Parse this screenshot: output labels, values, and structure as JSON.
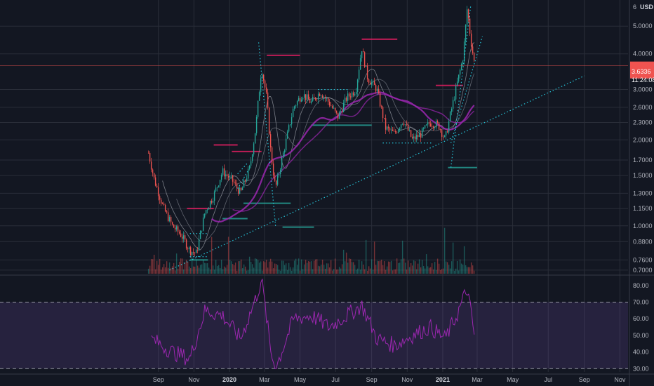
{
  "colors": {
    "background": "#131722",
    "grid": "#2a2e39",
    "up": "#26a69a",
    "down": "#ef5350",
    "rsi_line": "#9c27b0",
    "rsi_band": "#7e57c2",
    "trend_line": "#26c6da",
    "ma_thin": "#9598a1",
    "ma_purple": "#9c27b0",
    "resistance": "#e91e63",
    "support": "#26a69a",
    "price_tag": "#ef5350"
  },
  "price_axis": {
    "currency": "USD",
    "ticks": [
      "6",
      "5.0000",
      "4.0000",
      "3.0000",
      "2.6000",
      "2.3000",
      "2.0000",
      "1.7000",
      "1.5000",
      "1.3000",
      "1.1500",
      "1.0000",
      "0.8800",
      "0.7600",
      "0.7000"
    ],
    "last_price": "3.6336",
    "countdown": "11:24:08"
  },
  "rsi_axis": {
    "ticks": [
      "80.00",
      "70.00",
      "60.00",
      "50.00",
      "40.00",
      "30.00"
    ],
    "upper_band": 70,
    "lower_band": 30
  },
  "time_axis": {
    "labels": [
      "Sep",
      "Nov",
      "2020",
      "Mar",
      "May",
      "Jul",
      "Sep",
      "Nov",
      "2021",
      "Mar",
      "May",
      "Jul",
      "Sep",
      "Nov"
    ],
    "bold_labels": [
      "2020",
      "2021"
    ]
  },
  "chart_data": {
    "type": "line",
    "title": "",
    "x_start": "2019-08",
    "x_end": "2021-11",
    "ylim": [
      0.7,
      6.0
    ],
    "y_scale": "log",
    "series": [
      {
        "x": [
          "2019-08-15",
          "2019-08-25",
          "2019-09-10",
          "2019-09-25",
          "2019-10-10",
          "2019-10-25",
          "2019-11-05",
          "2019-11-20",
          "2019-12-05",
          "2019-12-20",
          "2020-01-05",
          "2020-01-20",
          "2020-02-05",
          "2020-02-15",
          "2020-02-25",
          "2020-03-05",
          "2020-03-12",
          "2020-03-20",
          "2020-04-05",
          "2020-04-20",
          "2020-05-05",
          "2020-05-20",
          "2020-06-05",
          "2020-06-20",
          "2020-07-05",
          "2020-07-20",
          "2020-08-05",
          "2020-08-15",
          "2020-08-25",
          "2020-09-10",
          "2020-09-25",
          "2020-10-10",
          "2020-10-25",
          "2020-11-10",
          "2020-11-25",
          "2020-12-10",
          "2020-12-25",
          "2021-01-05",
          "2021-01-15",
          "2021-01-25",
          "2021-02-05",
          "2021-02-12",
          "2021-02-18",
          "2021-02-25"
        ],
        "values": [
          1.8,
          1.45,
          1.15,
          1.0,
          0.93,
          0.82,
          0.8,
          1.12,
          1.28,
          1.55,
          1.45,
          1.3,
          1.6,
          2.2,
          3.6,
          2.8,
          1.8,
          1.35,
          1.9,
          2.6,
          2.9,
          2.7,
          2.95,
          2.7,
          2.4,
          2.8,
          3.0,
          4.2,
          3.3,
          3.0,
          2.2,
          2.1,
          2.35,
          2.0,
          2.1,
          2.3,
          2.25,
          2.0,
          2.5,
          3.1,
          3.9,
          5.8,
          4.5,
          3.63
        ]
      },
      {
        "x": [
          "2019-08-20",
          "2019-09-25",
          "2019-10-25",
          "2019-11-20",
          "2019-12-20",
          "2020-01-20",
          "2020-02-15",
          "2020-02-25",
          "2020-03-12",
          "2020-03-20",
          "2020-04-20",
          "2020-05-20",
          "2020-06-20",
          "2020-07-20",
          "2020-08-15",
          "2020-09-10",
          "2020-10-10",
          "2020-11-10",
          "2020-12-10",
          "2021-01-05",
          "2021-01-25",
          "2021-02-12",
          "2021-02-25"
        ],
        "values": [
          48,
          40,
          36,
          65,
          62,
          48,
          72,
          84,
          40,
          30,
          60,
          62,
          55,
          62,
          68,
          48,
          44,
          50,
          55,
          48,
          62,
          78,
          48
        ]
      }
    ],
    "annotations": [
      {
        "x": "2021-02-25",
        "y": 3.6336
      }
    ]
  }
}
